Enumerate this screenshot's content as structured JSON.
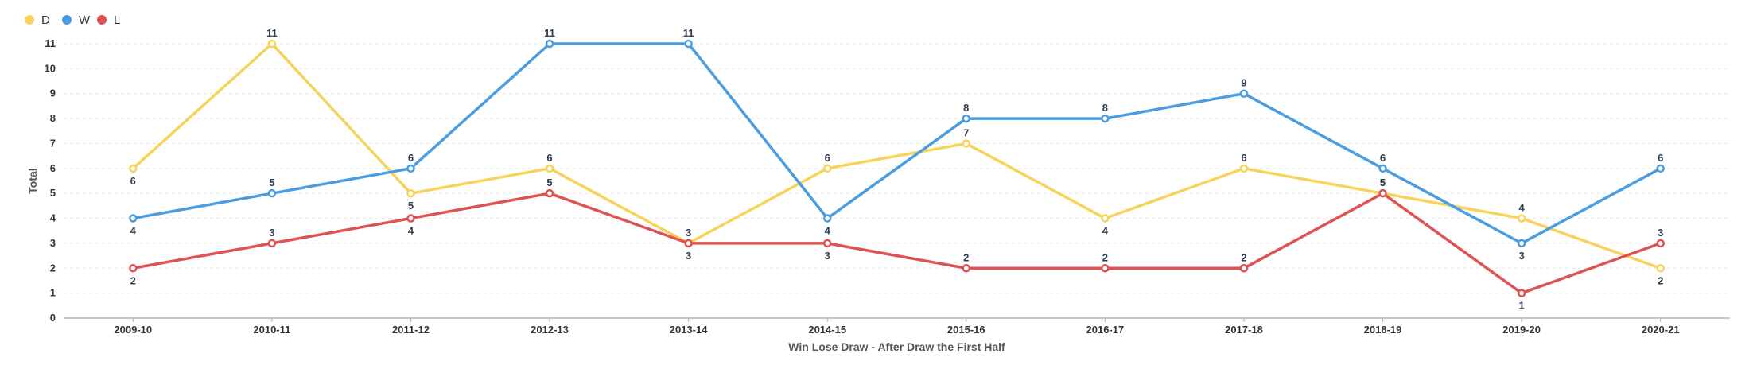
{
  "chart_data": {
    "type": "line",
    "title": "",
    "xlabel": "Win Lose Draw - After Draw the First Half",
    "ylabel": "Total",
    "ylim": [
      0,
      11
    ],
    "yticks": [
      "0",
      "1",
      "2",
      "3",
      "4",
      "5",
      "6",
      "7",
      "8",
      "9",
      "10",
      "11"
    ],
    "grid": "horizontal dashed",
    "legend_position": "top-left",
    "categories": [
      "2009-10",
      "2010-11",
      "2011-12",
      "2012-13",
      "2013-14",
      "2014-15",
      "2015-16",
      "2016-17",
      "2017-18",
      "2018-19",
      "2019-20",
      "2020-21"
    ],
    "series": [
      {
        "name": "D",
        "color": "#f7d35c",
        "label_pos": [
          "below",
          "above",
          "below",
          "above",
          "below",
          "above",
          "above",
          "below",
          "above",
          "above",
          "above",
          "below"
        ],
        "values": [
          6,
          11,
          5,
          6,
          3,
          6,
          7,
          4,
          6,
          5,
          4,
          2
        ]
      },
      {
        "name": "W",
        "color": "#4a9de0",
        "label_pos": [
          "below",
          "above",
          "above",
          "above",
          "above",
          "below",
          "above",
          "above",
          "above",
          "above",
          "below",
          "above"
        ],
        "values": [
          4,
          5,
          6,
          11,
          11,
          4,
          8,
          8,
          9,
          6,
          3,
          6
        ]
      },
      {
        "name": "L",
        "color": "#e05252",
        "label_pos": [
          "below",
          "above",
          "below",
          "above",
          "above",
          "below",
          "above",
          "above",
          "above",
          "above",
          "below",
          "above"
        ],
        "values": [
          2,
          3,
          4,
          5,
          3,
          3,
          2,
          2,
          2,
          5,
          1,
          3
        ]
      }
    ]
  }
}
